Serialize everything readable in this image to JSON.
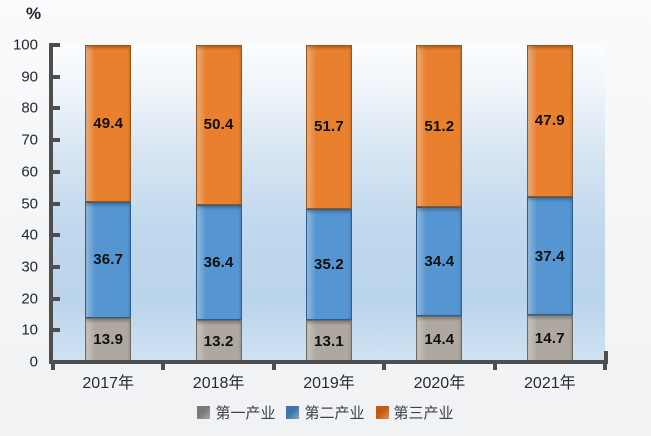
{
  "unit_label": "%",
  "chart_data": {
    "type": "bar",
    "stacked": true,
    "title": "",
    "xlabel": "",
    "ylabel": "%",
    "categories": [
      "2017年",
      "2018年",
      "2019年",
      "2020年",
      "2021年"
    ],
    "series": [
      {
        "name": "第一产业",
        "values": [
          13.9,
          13.2,
          13.1,
          14.4,
          14.7
        ],
        "color": "#AEA8A0",
        "color_border": "#6F6A62",
        "legend_color": "#7A7A7A"
      },
      {
        "name": "第二产业",
        "values": [
          36.7,
          36.4,
          35.2,
          34.4,
          37.4
        ],
        "color": "#5596D2",
        "color_border": "#2E5E8E",
        "legend_color": "#3D74AE"
      },
      {
        "name": "第三产业",
        "values": [
          49.4,
          50.4,
          51.7,
          51.2,
          47.9
        ],
        "color": "#E9802E",
        "color_border": "#9C5512",
        "legend_color": "#C05C12"
      }
    ],
    "ylim": [
      0,
      100
    ],
    "yticks": [
      0,
      10,
      20,
      30,
      40,
      50,
      60,
      70,
      80,
      90,
      100
    ],
    "legend_position": "bottom",
    "grid": false
  }
}
